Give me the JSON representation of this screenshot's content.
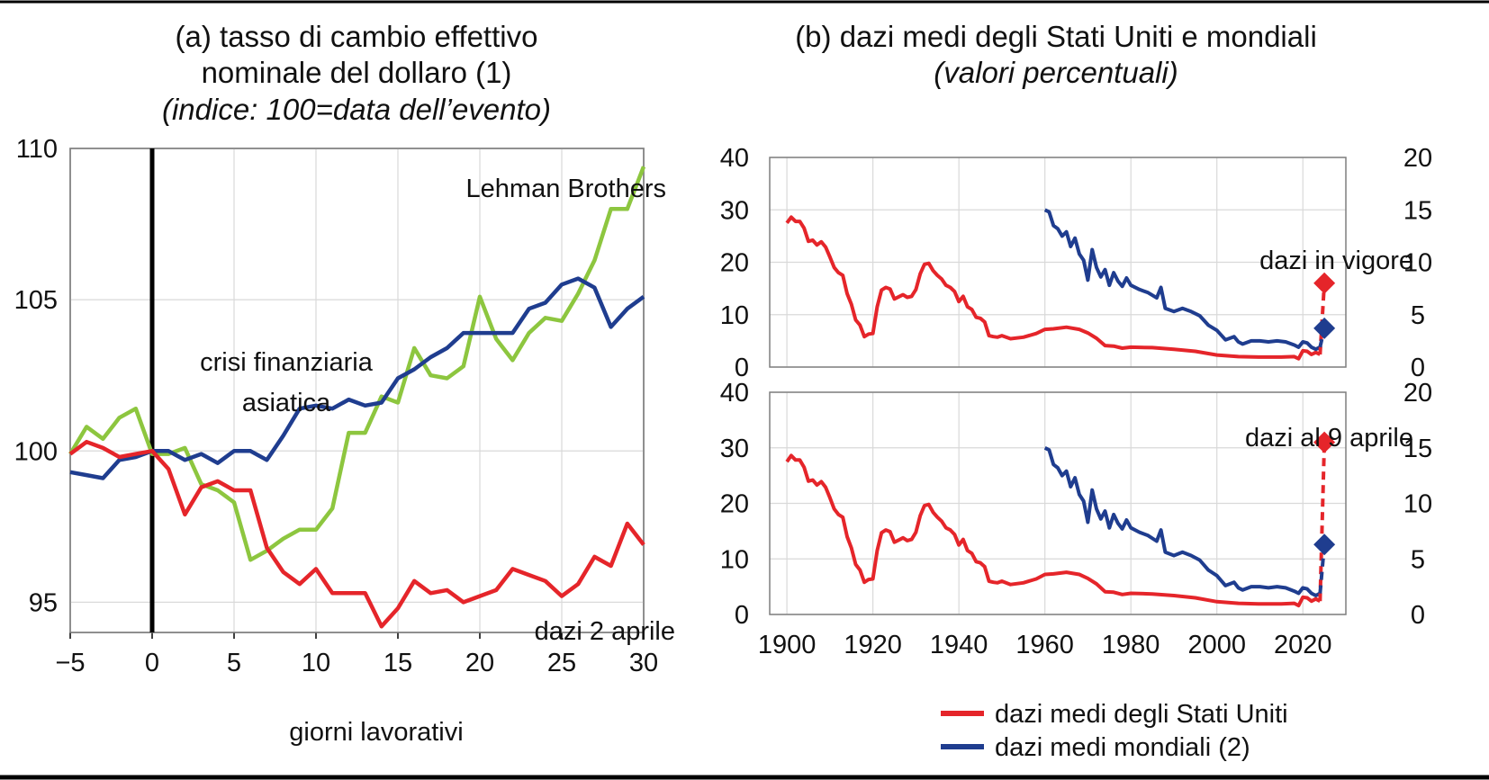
{
  "colors": {
    "us": "#e5252a",
    "world": "#1f3d8f",
    "green": "#8dc63f",
    "black": "#000000",
    "grid": "#d9d9d9",
    "frame": "#7f7f7f"
  },
  "panel_a": {
    "title_line1": "(a) tasso di cambio effettivo",
    "title_line2": "nominale del dollaro (1)",
    "subtitle": "(indice: 100=data dell’evento)",
    "xlabel": "giorni lavorativi",
    "label_lehman": "Lehman Brothers",
    "label_asian_1": "crisi finanziaria",
    "label_asian_2": "asiatica",
    "label_tariffs": "dazi 2 aprile"
  },
  "panel_b": {
    "title": "(b) dazi medi degli Stati Uniti e mondiali",
    "subtitle": "(valori percentuali)",
    "label_top": "dazi in vigore",
    "label_bottom": "dazi al 9 aprile"
  },
  "legend": {
    "us": "dazi medi degli Stati Uniti",
    "world": "dazi medi mondiali (2)"
  },
  "chart_data": [
    {
      "type": "line",
      "title": "(a) tasso di cambio effettivo nominale del dollaro (1)",
      "subtitle": "(indice: 100=data dell’evento)",
      "xlabel": "giorni lavorativi",
      "ylabel": "",
      "xlim": [
        -5,
        30
      ],
      "ylim": [
        94,
        110
      ],
      "xticks": [
        -5,
        0,
        5,
        10,
        15,
        20,
        25,
        30
      ],
      "yticks": [
        95,
        100,
        105,
        110
      ],
      "x_tick_labels": [
        "−5",
        "0",
        "5",
        "10",
        "15",
        "20",
        "25",
        "30"
      ],
      "y_tick_labels": [
        "95",
        "100",
        "105",
        "110"
      ],
      "grid": true,
      "event_line_x": 0,
      "x": [
        -5,
        -4,
        -3,
        -2,
        -1,
        0,
        1,
        2,
        3,
        4,
        5,
        6,
        7,
        8,
        9,
        10,
        11,
        12,
        13,
        14,
        15,
        16,
        17,
        18,
        19,
        20,
        21,
        22,
        23,
        24,
        25,
        26,
        27,
        28,
        29,
        30
      ],
      "series": [
        {
          "name": "Lehman Brothers",
          "color": "green",
          "values": [
            99.9,
            100.8,
            100.4,
            101.1,
            101.4,
            99.9,
            99.9,
            100.1,
            98.9,
            98.7,
            98.3,
            96.4,
            96.7,
            97.1,
            97.4,
            97.4,
            98.1,
            100.6,
            100.6,
            101.8,
            101.6,
            103.4,
            102.5,
            102.4,
            102.8,
            105.1,
            103.7,
            103.0,
            103.9,
            104.4,
            104.3,
            105.2,
            106.3,
            108.0,
            108.0,
            109.4
          ]
        },
        {
          "name": "crisi finanziaria asiatica",
          "color": "world",
          "values": [
            99.3,
            99.2,
            99.1,
            99.7,
            99.8,
            100.0,
            100.0,
            99.7,
            99.9,
            99.6,
            100.0,
            100.0,
            99.7,
            100.5,
            101.4,
            101.5,
            101.4,
            101.7,
            101.5,
            101.6,
            102.4,
            102.7,
            103.1,
            103.4,
            103.9,
            103.9,
            103.9,
            103.9,
            104.7,
            104.9,
            105.5,
            105.7,
            105.4,
            104.1,
            104.7,
            105.1
          ]
        },
        {
          "name": "dazi 2 aprile",
          "color": "us",
          "values": [
            99.9,
            100.3,
            100.1,
            99.8,
            99.9,
            100.0,
            99.4,
            97.9,
            98.8,
            99.0,
            98.7,
            98.7,
            96.8,
            96.0,
            95.6,
            96.1,
            95.3,
            95.3,
            95.3,
            94.2,
            94.8,
            95.7,
            95.3,
            95.4,
            95.0,
            95.2,
            95.4,
            96.1,
            95.9,
            95.7,
            95.2,
            95.6,
            96.5,
            96.2,
            97.6,
            96.9
          ]
        }
      ]
    },
    {
      "type": "line",
      "title": "(b) dazi medi degli Stati Uniti e mondiali",
      "subtitle": "(valori percentuali)",
      "annotation": "dazi in vigore",
      "xlim": [
        1896,
        2030
      ],
      "ylim": [
        0,
        40
      ],
      "y2lim": [
        0,
        20
      ],
      "yticks": [
        0,
        10,
        20,
        30,
        40
      ],
      "y2ticks": [
        0,
        5,
        10,
        15,
        20
      ],
      "grid": true,
      "series": [
        {
          "name": "dazi medi degli Stati Uniti",
          "color": "us",
          "axis": "left",
          "x": [
            1900,
            1901,
            1902,
            1903,
            1904,
            1905,
            1906,
            1907,
            1908,
            1909,
            1910,
            1911,
            1912,
            1913,
            1914,
            1915,
            1916,
            1917,
            1918,
            1919,
            1920,
            1921,
            1922,
            1923,
            1924,
            1925,
            1926,
            1927,
            1928,
            1929,
            1930,
            1931,
            1932,
            1933,
            1934,
            1935,
            1936,
            1937,
            1938,
            1939,
            1940,
            1941,
            1942,
            1943,
            1944,
            1945,
            1946,
            1947,
            1948,
            1949,
            1950,
            1952,
            1955,
            1958,
            1960,
            1962,
            1965,
            1968,
            1970,
            1972,
            1974,
            1976,
            1978,
            1980,
            1985,
            1990,
            1995,
            2000,
            2005,
            2010,
            2015,
            2018,
            2019,
            2020,
            2021,
            2022,
            2023,
            2024
          ],
          "values": [
            27.5,
            28.6,
            27.8,
            27.8,
            26.5,
            24.0,
            24.2,
            23.3,
            23.9,
            22.9,
            21.0,
            19.0,
            18.0,
            17.5,
            14.0,
            12.0,
            9.0,
            8.0,
            5.8,
            6.3,
            6.4,
            11.5,
            14.7,
            15.2,
            14.9,
            13.0,
            13.4,
            13.8,
            13.3,
            13.5,
            14.8,
            17.8,
            19.6,
            19.8,
            18.4,
            17.5,
            16.8,
            15.6,
            15.2,
            14.4,
            12.5,
            13.5,
            11.5,
            11.0,
            9.5,
            9.3,
            8.6,
            6.0,
            5.8,
            5.7,
            6.0,
            5.4,
            5.7,
            6.4,
            7.2,
            7.3,
            7.6,
            7.2,
            6.5,
            5.5,
            4.1,
            4.0,
            3.6,
            3.8,
            3.7,
            3.4,
            3.0,
            2.3,
            2.0,
            1.9,
            1.9,
            2.0,
            1.6,
            3.1,
            3.0,
            2.4,
            2.8,
            2.4
          ]
        },
        {
          "name": "dazi medi mondiali (2)",
          "color": "world",
          "axis": "right",
          "x": [
            1960,
            1961,
            1962,
            1963,
            1964,
            1965,
            1966,
            1967,
            1968,
            1969,
            1970,
            1971,
            1972,
            1973,
            1974,
            1975,
            1976,
            1977,
            1978,
            1979,
            1980,
            1982,
            1984,
            1986,
            1987,
            1988,
            1990,
            1992,
            1994,
            1996,
            1998,
            2000,
            2002,
            2004,
            2005,
            2006,
            2008,
            2010,
            2012,
            2014,
            2016,
            2018,
            2019,
            2020,
            2021,
            2022,
            2023,
            2024
          ],
          "values": [
            15.0,
            14.8,
            13.5,
            13.2,
            12.5,
            12.9,
            11.5,
            12.3,
            10.8,
            10.2,
            8.3,
            11.2,
            9.5,
            8.6,
            9.3,
            7.8,
            9.0,
            8.2,
            7.7,
            8.5,
            7.8,
            7.4,
            7.1,
            6.6,
            7.6,
            5.6,
            5.3,
            5.6,
            5.3,
            4.9,
            4.0,
            3.5,
            2.6,
            2.9,
            2.4,
            2.2,
            2.5,
            2.5,
            2.4,
            2.5,
            2.4,
            2.1,
            1.9,
            2.4,
            2.3,
            1.9,
            1.7,
            1.9
          ]
        }
      ],
      "points": [
        {
          "series": "dazi medi degli Stati Uniti",
          "x": 2025,
          "value": 16,
          "axis": "left"
        },
        {
          "series": "dazi medi mondiali (2)",
          "x": 2025,
          "value": 3.7,
          "axis": "right"
        }
      ]
    },
    {
      "type": "line",
      "annotation": "dazi al 9 aprile",
      "xlabel": "",
      "xlim": [
        1896,
        2030
      ],
      "xticks": [
        1900,
        1920,
        1940,
        1960,
        1980,
        2000,
        2020
      ],
      "ylim": [
        0,
        40
      ],
      "y2lim": [
        0,
        20
      ],
      "yticks": [
        0,
        10,
        20,
        30,
        40
      ],
      "y2ticks": [
        0,
        5,
        10,
        15,
        20
      ],
      "grid": true,
      "points": [
        {
          "series": "dazi medi degli Stati Uniti",
          "x": 2025,
          "value": 31,
          "axis": "left"
        },
        {
          "series": "dazi medi mondiali (2)",
          "x": 2025,
          "value": 6.3,
          "axis": "right"
        }
      ],
      "series_same_as_top": true
    }
  ]
}
